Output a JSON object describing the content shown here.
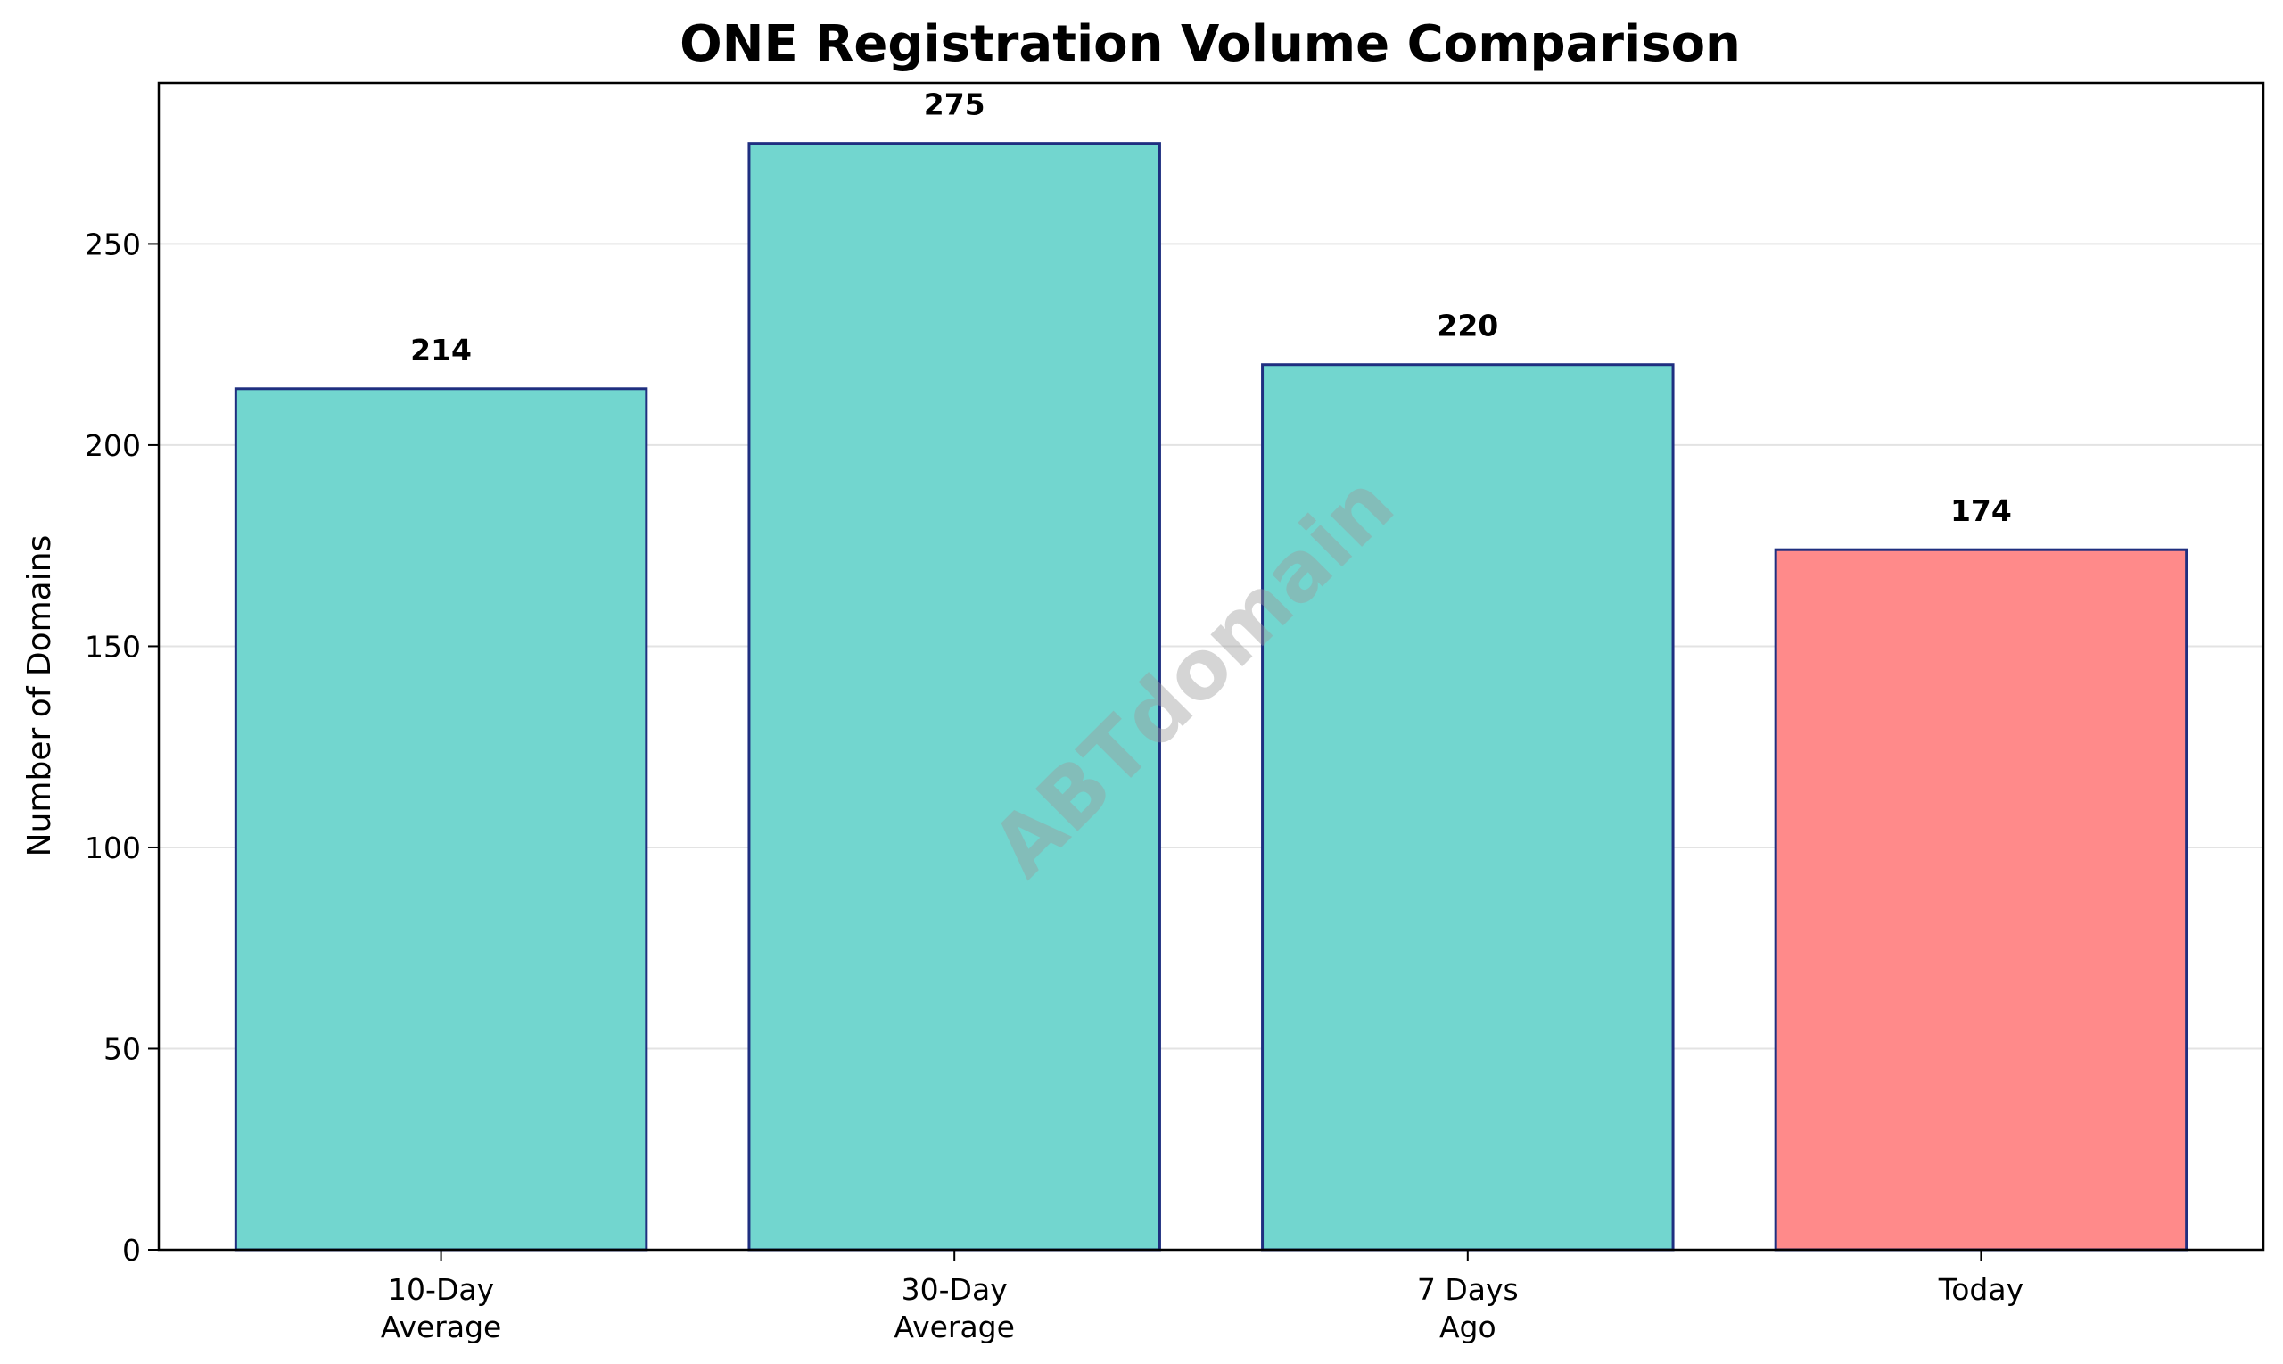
{
  "chart_data": {
    "type": "bar",
    "title": "ONE Registration Volume Comparison",
    "xlabel": "",
    "ylabel": "Number of Domains",
    "categories": [
      [
        "10-Day",
        "Average"
      ],
      [
        "30-Day",
        "Average"
      ],
      [
        "7 Days",
        "Ago"
      ],
      [
        "Today"
      ]
    ],
    "values": [
      214,
      275,
      220,
      174
    ],
    "data_labels": [
      "214",
      "275",
      "220",
      "174"
    ],
    "bar_colors": [
      "#72d6cf",
      "#72d6cf",
      "#72d6cf",
      "#ff8a8a"
    ],
    "bar_edge_color": "#1f2f80",
    "ylim": [
      0,
      290
    ],
    "yticks": [
      0,
      50,
      100,
      150,
      200,
      250
    ],
    "grid": "horizontal",
    "legend": "none"
  },
  "watermark": {
    "text": "ABTdomain",
    "color": "#9a9a9a"
  }
}
